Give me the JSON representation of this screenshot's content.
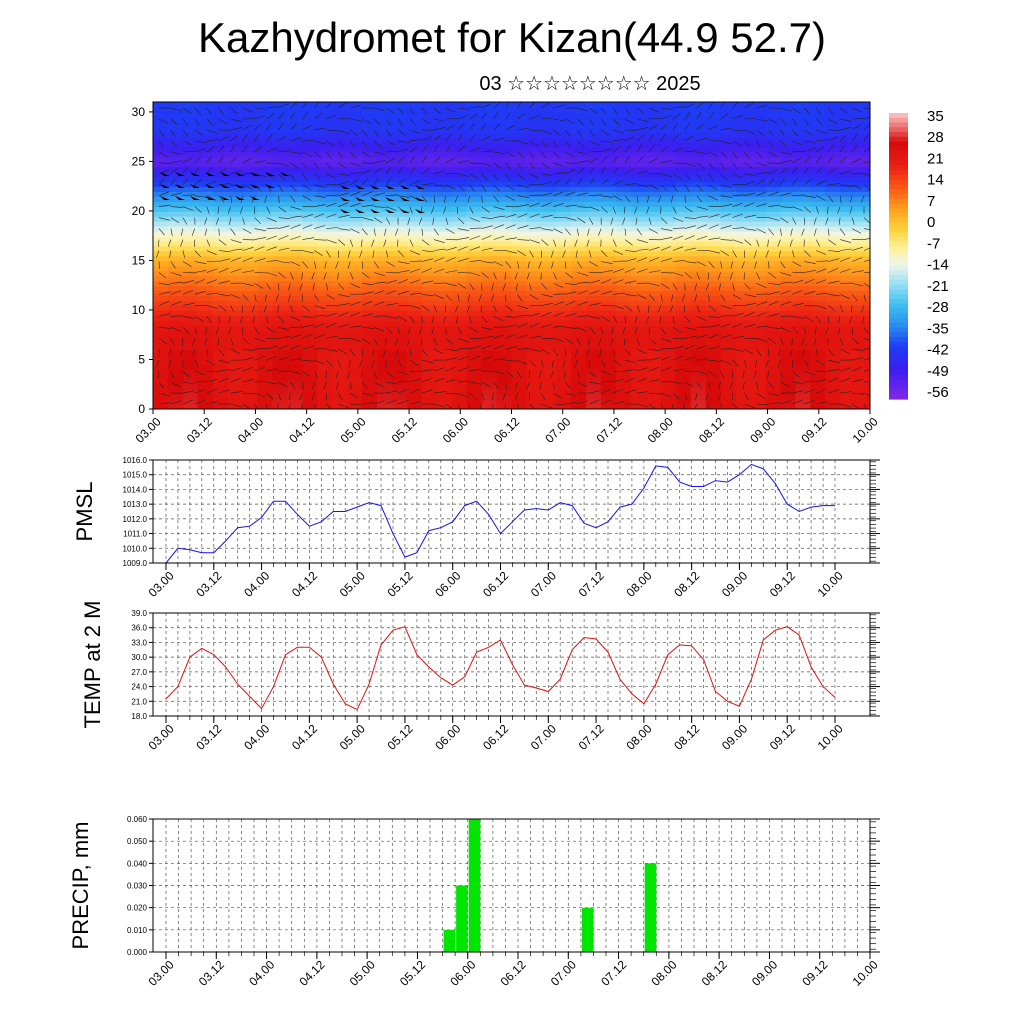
{
  "title": "Kazhydromet for Kizan(44.9 52.7)",
  "subtitle": "03 ☆☆☆☆☆☆☆☆ 2025",
  "colors": {
    "pmsl_line": "#1414e6",
    "temp_line": "#e01010",
    "precip_bar": "#00e600",
    "grid": "#333333"
  },
  "chart_data": [
    {
      "name": "cross-section",
      "type": "heatmap",
      "x_ticks": [
        "03.00",
        "03.12",
        "04.00",
        "04.12",
        "05.00",
        "05.12",
        "06.00",
        "06.12",
        "07.00",
        "07.12",
        "08.00",
        "08.12",
        "09.00",
        "09.12",
        "10.00"
      ],
      "y_ticks": [
        "0",
        "5",
        "10",
        "15",
        "20",
        "25",
        "30"
      ],
      "ylim": [
        0,
        31
      ],
      "colorbar_labels": [
        "35",
        "28",
        "21",
        "14",
        "7",
        "0",
        "-7",
        "-14",
        "-21",
        "-28",
        "-35",
        "-42",
        "-49",
        "-56"
      ],
      "colorbar_range": [
        -60,
        38
      ],
      "overlay": "wind barbs"
    },
    {
      "name": "pmsl",
      "type": "line",
      "ylabel": "PMSL",
      "ylim": [
        1009.0,
        1016.0
      ],
      "y_ticks": [
        "1009.0",
        "1010.0",
        "1011.0",
        "1012.0",
        "1013.0",
        "1014.0",
        "1015.0",
        "1016.0"
      ],
      "x_ticks": [
        "03.00",
        "03.12",
        "04.00",
        "04.12",
        "05.00",
        "05.12",
        "06.00",
        "06.12",
        "07.00",
        "07.12",
        "08.00",
        "08.12",
        "09.00",
        "09.12",
        "10.00"
      ],
      "values": [
        1009.0,
        1010.0,
        1009.9,
        1009.7,
        1009.7,
        1010.5,
        1011.4,
        1011.5,
        1012.1,
        1013.2,
        1013.2,
        1012.3,
        1011.5,
        1011.8,
        1012.5,
        1012.5,
        1012.8,
        1013.1,
        1012.9,
        1011.0,
        1009.4,
        1009.7,
        1011.2,
        1011.4,
        1011.8,
        1012.9,
        1013.2,
        1012.3,
        1011.0,
        1011.8,
        1012.6,
        1012.7,
        1012.6,
        1013.1,
        1012.9,
        1011.7,
        1011.4,
        1011.8,
        1012.8,
        1013.0,
        1014.1,
        1015.6,
        1015.5,
        1014.5,
        1014.2,
        1014.2,
        1014.6,
        1014.5,
        1015.0,
        1015.7,
        1015.4,
        1014.4,
        1013.0,
        1012.5,
        1012.8,
        1012.9,
        1012.9
      ],
      "grid": true
    },
    {
      "name": "temp",
      "type": "line",
      "ylabel": "TEMP at 2 M",
      "ylim": [
        18.0,
        39.0
      ],
      "y_ticks": [
        "18.0",
        "21.0",
        "24.0",
        "27.0",
        "30.0",
        "33.0",
        "36.0",
        "39.0"
      ],
      "x_ticks": [
        "03.00",
        "03.12",
        "04.00",
        "04.12",
        "05.00",
        "05.12",
        "06.00",
        "06.12",
        "07.00",
        "07.12",
        "08.00",
        "08.12",
        "09.00",
        "09.12",
        "10.00"
      ],
      "values": [
        21.5,
        24.0,
        30.0,
        31.8,
        30.5,
        28.0,
        24.5,
        22.0,
        19.5,
        24.0,
        30.5,
        32.0,
        32.0,
        30.0,
        24.5,
        20.5,
        19.3,
        24.5,
        32.5,
        35.5,
        36.2,
        30.5,
        28.0,
        25.8,
        24.3,
        26.0,
        31.0,
        32.0,
        33.5,
        28.5,
        24.3,
        23.7,
        23.0,
        25.5,
        31.5,
        34.0,
        33.7,
        31.0,
        25.5,
        22.5,
        20.5,
        24.5,
        30.5,
        32.5,
        32.3,
        29.5,
        23.0,
        21.0,
        20.0,
        25.5,
        33.5,
        35.5,
        36.2,
        34.5,
        28.0,
        24.0,
        21.8
      ],
      "grid": true
    },
    {
      "name": "precip",
      "type": "bar",
      "ylabel": "PRECIP, mm",
      "ylim": [
        0.0,
        0.06
      ],
      "y_ticks": [
        "0.000",
        "0.010",
        "0.020",
        "0.030",
        "0.040",
        "0.050",
        "0.060"
      ],
      "x_ticks": [
        "03.00",
        "03.12",
        "04.00",
        "04.12",
        "05.00",
        "05.12",
        "06.00",
        "06.12",
        "07.00",
        "07.12",
        "08.00",
        "08.12",
        "09.00",
        "09.12",
        "10.00"
      ],
      "bars": [
        {
          "time_index": 22,
          "value": 0.01
        },
        {
          "time_index": 23,
          "value": 0.03
        },
        {
          "time_index": 24,
          "value": 0.06
        },
        {
          "time_index": 33,
          "value": 0.02
        },
        {
          "time_index": 38,
          "value": 0.04
        }
      ],
      "grid": true
    }
  ]
}
